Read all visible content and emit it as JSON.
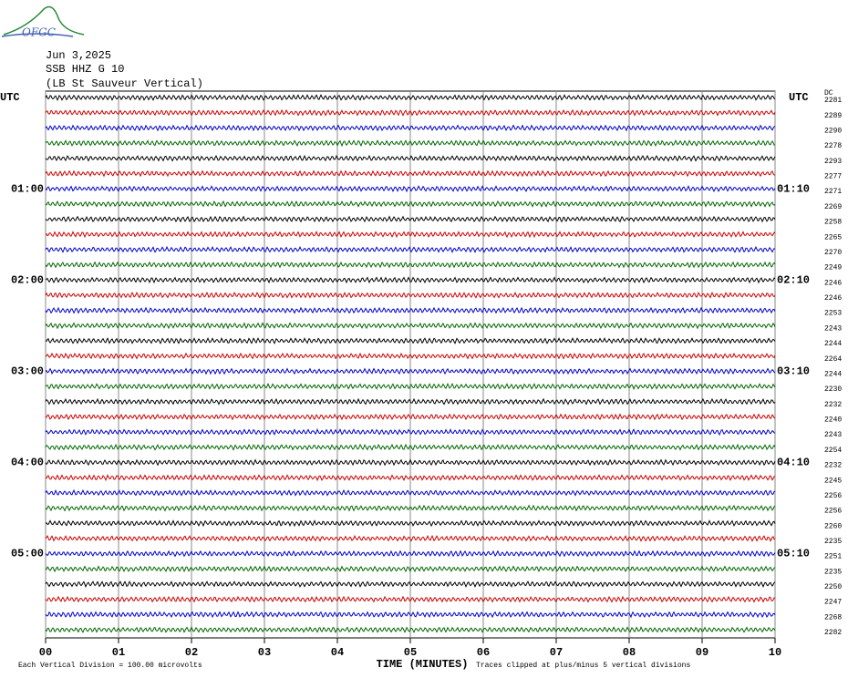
{
  "chart_data": {
    "type": "helicorder",
    "logo": "OFGC",
    "title_lines": [
      "Jun 3,2025",
      "SSB HHZ G 10",
      "(LB  St Sauveur Vertical)"
    ],
    "xlabel": "TIME (MINUTES)",
    "xlim": [
      0,
      10
    ],
    "xticks": [
      {
        "value": 0,
        "label": "00"
      },
      {
        "value": 1,
        "label": "01"
      },
      {
        "value": 2,
        "label": "02"
      },
      {
        "value": 3,
        "label": "03"
      },
      {
        "value": 4,
        "label": "04"
      },
      {
        "value": 5,
        "label": "05"
      },
      {
        "value": 6,
        "label": "06"
      },
      {
        "value": 7,
        "label": "07"
      },
      {
        "value": 8,
        "label": "08"
      },
      {
        "value": 9,
        "label": "09"
      },
      {
        "value": 10,
        "label": "10"
      }
    ],
    "grid": true,
    "trace_colors": [
      "#000000",
      "#cc0000",
      "#0000cc",
      "#006600"
    ],
    "left_labels": [
      "UTC",
      null,
      null,
      null,
      null,
      null,
      "01:00",
      null,
      null,
      null,
      null,
      null,
      "02:00",
      null,
      null,
      null,
      null,
      null,
      "03:00",
      null,
      null,
      null,
      null,
      null,
      "04:00",
      null,
      null,
      null,
      null,
      null,
      "05:00",
      null,
      null,
      null,
      null,
      null
    ],
    "right_labels": [
      "UTC",
      null,
      null,
      null,
      null,
      null,
      "01:10",
      null,
      null,
      null,
      null,
      null,
      "02:10",
      null,
      null,
      null,
      null,
      null,
      "03:10",
      null,
      null,
      null,
      null,
      null,
      "04:10",
      null,
      null,
      null,
      null,
      null,
      "05:10",
      null,
      null,
      null,
      null,
      null
    ],
    "dc_header": "DC",
    "dc_values": [
      2281,
      2289,
      2290,
      2278,
      2293,
      2277,
      2271,
      2269,
      2258,
      2265,
      2270,
      2249,
      2246,
      2246,
      2253,
      2243,
      2244,
      2264,
      2244,
      2230,
      2232,
      2240,
      2243,
      2254,
      2232,
      2245,
      2256,
      2256,
      2260,
      2235,
      2251,
      2235,
      2250,
      2247,
      2268,
      2282
    ],
    "scale_note": "Each Vertical Division =  100.00 microvolts",
    "clip_note": "Traces clipped at plus/minus 5 vertical divisions"
  }
}
